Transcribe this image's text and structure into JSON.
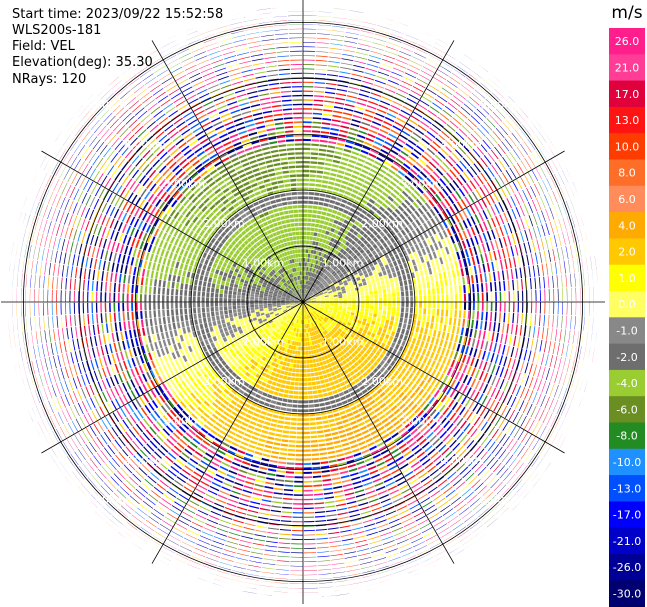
{
  "header": {
    "start_time": "Start time: 2023/09/22 15:52:58",
    "instrument": "WLS200s-181",
    "field": "Field: VEL",
    "elevation": "Elevation(deg): 35.30",
    "nrays": "NRays: 120"
  },
  "chart_data": {
    "type": "heatmap",
    "projection": "polar (plan position indicator)",
    "field": "VEL",
    "units": "m/s",
    "elevation_deg": 35.3,
    "n_rays": 120,
    "range_rings_km": [
      1.0,
      2.0,
      3.0,
      4.0,
      5.0
    ],
    "ring_labels": [
      "1.00km",
      "2.00km",
      "3.00km",
      "4.00km",
      "5.00km"
    ],
    "colorbar": {
      "title": "m/s",
      "tick_labels": [
        "26.0",
        "21.0",
        "17.0",
        "13.0",
        "10.0",
        "8.0",
        "6.0",
        "4.0",
        "2.0",
        "1.0",
        "0.0",
        "-1.0",
        "-2.0",
        "-4.0",
        "-6.0",
        "-8.0",
        "-10.0",
        "-13.0",
        "-17.0",
        "-21.0",
        "-26.0",
        "-30.0"
      ],
      "colors": [
        "#ff1e8c",
        "#ff3c96",
        "#e0003c",
        "#ff1414",
        "#ff3c00",
        "#ff6e28",
        "#ff8c5a",
        "#ffaa00",
        "#ffc800",
        "#ffff00",
        "#ffff64",
        "#888888",
        "#6e6e6e",
        "#9acd32",
        "#6b8e23",
        "#228b22",
        "#1e90ff",
        "#0050ff",
        "#0000ff",
        "#0000c8",
        "#000096",
        "#000070",
        "#00004b"
      ]
    }
  }
}
